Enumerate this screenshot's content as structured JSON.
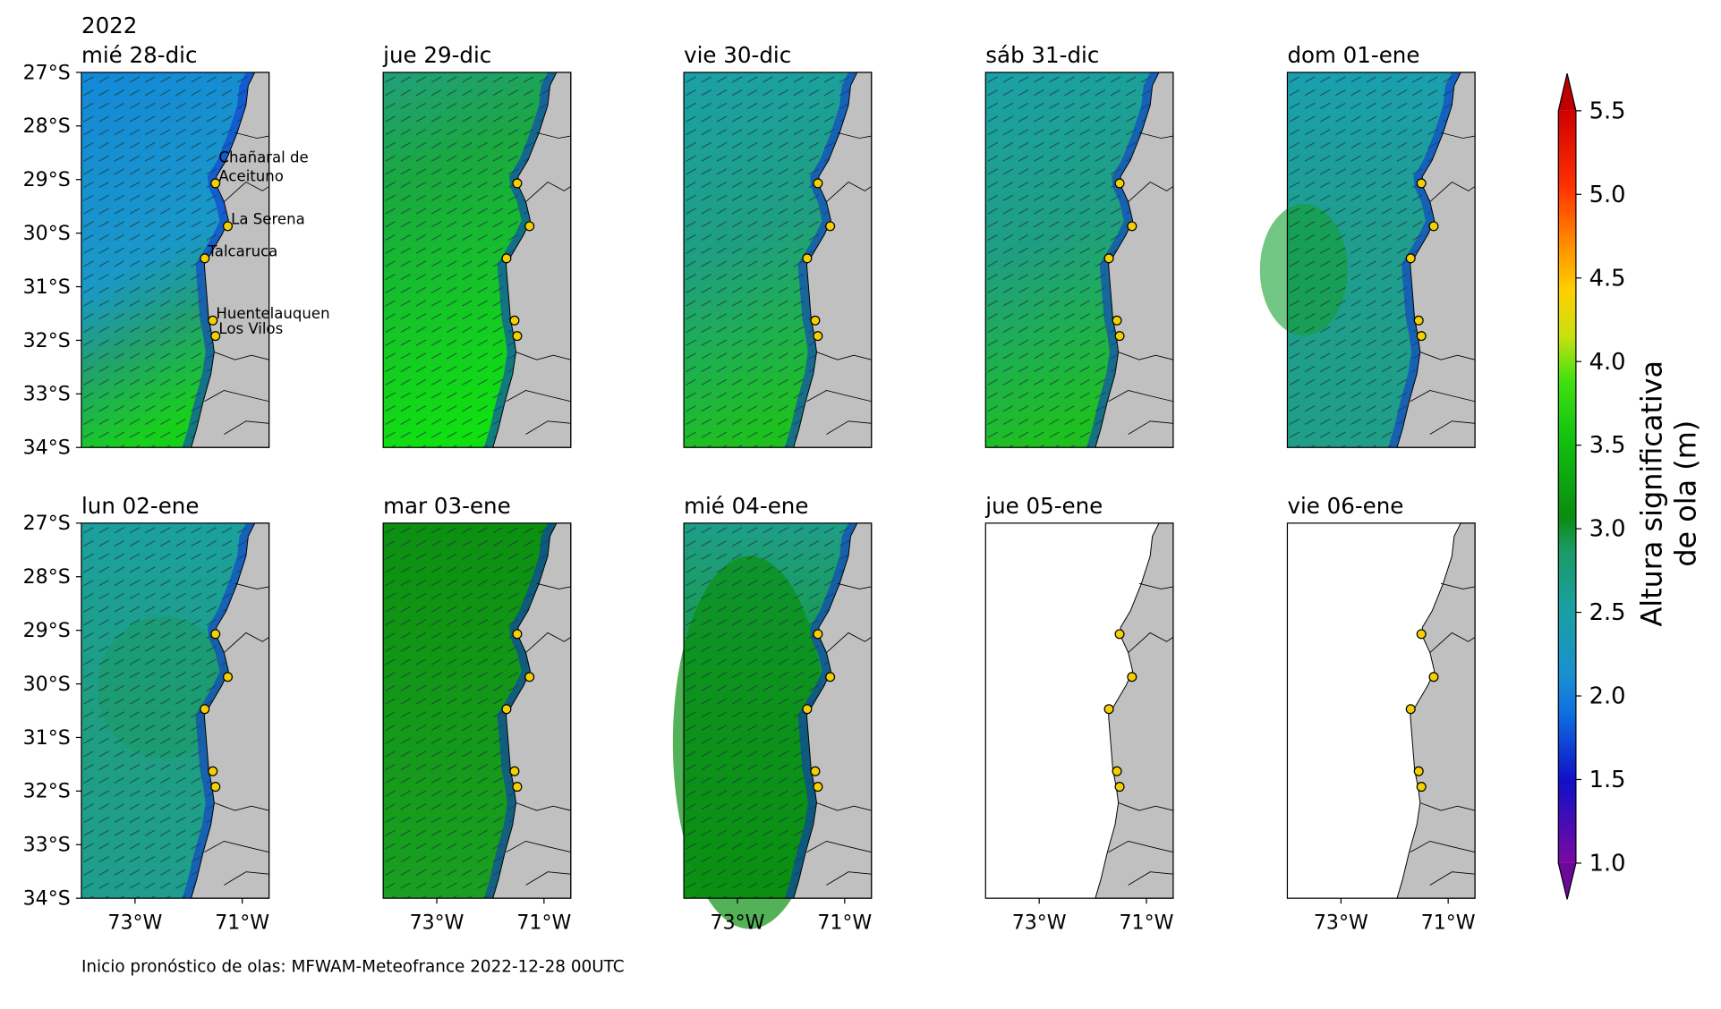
{
  "year": "2022",
  "panels": [
    {
      "title": "mié 28-dic"
    },
    {
      "title": "jue 29-dic"
    },
    {
      "title": "vie 30-dic"
    },
    {
      "title": "sáb 31-dic"
    },
    {
      "title": "dom 01-ene"
    },
    {
      "title": "lun 02-ene"
    },
    {
      "title": "mar 03-ene"
    },
    {
      "title": "mié 04-ene"
    },
    {
      "title": "jue 05-ene"
    },
    {
      "title": "vie 06-ene"
    }
  ],
  "lat_range": [
    -34,
    -27
  ],
  "lon_range": [
    -74,
    -70.5
  ],
  "lat_ticks": [
    {
      "value": -27,
      "label": "27°S"
    },
    {
      "value": -28,
      "label": "28°S"
    },
    {
      "value": -29,
      "label": "29°S"
    },
    {
      "value": -30,
      "label": "30°S"
    },
    {
      "value": -31,
      "label": "31°S"
    },
    {
      "value": -32,
      "label": "32°S"
    },
    {
      "value": -33,
      "label": "33°S"
    },
    {
      "value": -34,
      "label": "34°S"
    }
  ],
  "lon_ticks": [
    {
      "value": -73,
      "label": "73°W"
    },
    {
      "value": -71,
      "label": "71°W"
    }
  ],
  "cities": [
    {
      "label_lines": [
        "Chañaral de",
        "Aceituno"
      ],
      "lat": -29.07,
      "lon": -71.5
    },
    {
      "label_lines": [
        "La Serena"
      ],
      "lat": -29.87,
      "lon": -71.27
    },
    {
      "label_lines": [
        "Talcaruca"
      ],
      "lat": -30.47,
      "lon": -71.7
    },
    {
      "label_lines": [
        "Huentelauquen"
      ],
      "lat": -31.63,
      "lon": -71.55
    },
    {
      "label_lines": [
        "Los Vilos"
      ],
      "lat": -31.92,
      "lon": -71.5
    }
  ],
  "colorbar": {
    "label_lines": [
      "Altura significativa",
      "de ola (m)"
    ],
    "range": [
      1.0,
      5.5
    ],
    "ticks": [
      {
        "value": 1,
        "label": "1.0"
      },
      {
        "value": 1.5,
        "label": "1.5"
      },
      {
        "value": 2,
        "label": "2.0"
      },
      {
        "value": 2.5,
        "label": "2.5"
      },
      {
        "value": 3,
        "label": "3.0"
      },
      {
        "value": 3.5,
        "label": "3.5"
      },
      {
        "value": 4,
        "label": "4.0"
      },
      {
        "value": 4.5,
        "label": "4.5"
      },
      {
        "value": 5,
        "label": "5.0"
      },
      {
        "value": 5.5,
        "label": "5.5"
      }
    ]
  },
  "footer": "Inicio pronóstico de olas: MFWAM-Meteofrance 2022-12-28 00UTC"
}
